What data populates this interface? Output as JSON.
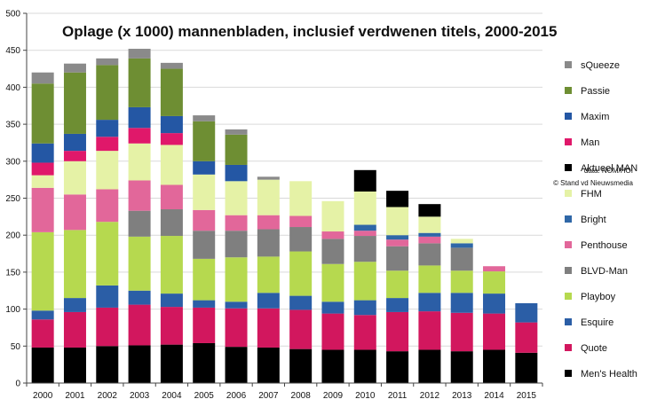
{
  "chart_data": {
    "type": "stacked-bar",
    "title": "Oplage (x 1000) mannenbladen, inclusief verdwenen titels, 2000-2015",
    "xlabel": "",
    "ylabel": "",
    "ylim": [
      0,
      500
    ],
    "yticks": [
      0,
      50,
      100,
      150,
      200,
      250,
      300,
      350,
      400,
      450,
      500
    ],
    "categories": [
      "2000",
      "2001",
      "2002",
      "2003",
      "2004",
      "2005",
      "2006",
      "2007",
      "2008",
      "2009",
      "2010",
      "2011",
      "2012",
      "2013",
      "2014",
      "2015"
    ],
    "legend_position": "right",
    "series": [
      {
        "name": "Men's Health",
        "color": "#000000",
        "values": [
          48,
          48,
          50,
          51,
          52,
          54,
          49,
          48,
          46,
          45,
          45,
          43,
          45,
          43,
          45,
          41
        ]
      },
      {
        "name": "Quote",
        "color": "#d2175e",
        "values": [
          38,
          48,
          52,
          55,
          51,
          48,
          52,
          53,
          53,
          49,
          47,
          53,
          52,
          52,
          49,
          41
        ]
      },
      {
        "name": "Esquire",
        "color": "#2b5ea6",
        "values": [
          12,
          19,
          30,
          19,
          18,
          10,
          9,
          21,
          19,
          16,
          20,
          19,
          25,
          27,
          27,
          26
        ]
      },
      {
        "name": "Playboy",
        "color": "#b6d94f",
        "values": [
          106,
          92,
          86,
          73,
          78,
          56,
          60,
          49,
          60,
          51,
          52,
          37,
          37,
          30,
          30,
          0
        ]
      },
      {
        "name": "BLVD-Man",
        "color": "#7f7f7f",
        "values": [
          0,
          0,
          0,
          35,
          36,
          38,
          36,
          37,
          33,
          34,
          35,
          33,
          30,
          31,
          0,
          0
        ]
      },
      {
        "name": "Penthouse",
        "color": "#e2679a",
        "values": [
          60,
          48,
          44,
          41,
          33,
          28,
          21,
          19,
          15,
          10,
          7,
          9,
          9,
          0,
          7,
          0
        ]
      },
      {
        "name": "Bright",
        "color": "#2f67a7",
        "values": [
          0,
          0,
          0,
          0,
          0,
          0,
          0,
          0,
          0,
          0,
          8,
          6,
          5,
          6,
          0,
          0
        ]
      },
      {
        "name": "FHM",
        "color": "#e5f2a6",
        "values": [
          17,
          45,
          52,
          50,
          54,
          48,
          46,
          48,
          47,
          41,
          45,
          38,
          22,
          6,
          0,
          0
        ]
      },
      {
        "name": "Aktueel MAN",
        "color": "#000000",
        "values": [
          0,
          0,
          0,
          0,
          0,
          0,
          0,
          0,
          0,
          0,
          29,
          22,
          17,
          0,
          0,
          0
        ]
      },
      {
        "name": "Man",
        "color": "#e0186a",
        "values": [
          17,
          14,
          19,
          21,
          16,
          0,
          0,
          0,
          0,
          0,
          0,
          0,
          0,
          0,
          0,
          0
        ]
      },
      {
        "name": "Maxim",
        "color": "#2457a4",
        "values": [
          26,
          23,
          23,
          28,
          23,
          18,
          22,
          0,
          0,
          0,
          0,
          0,
          0,
          0,
          0,
          0
        ]
      },
      {
        "name": "Passie",
        "color": "#6e8e33",
        "values": [
          81,
          83,
          74,
          66,
          64,
          54,
          41,
          0,
          0,
          0,
          0,
          0,
          0,
          0,
          0,
          0
        ]
      },
      {
        "name": "sQueeze",
        "color": "#8a8a8a",
        "values": [
          15,
          12,
          9,
          13,
          8,
          8,
          7,
          4,
          0,
          0,
          0,
          0,
          0,
          0,
          0,
          0
        ]
      }
    ],
    "source": [
      "data: NOM/HOI",
      "© Stand vd Nieuwsmedia"
    ]
  }
}
